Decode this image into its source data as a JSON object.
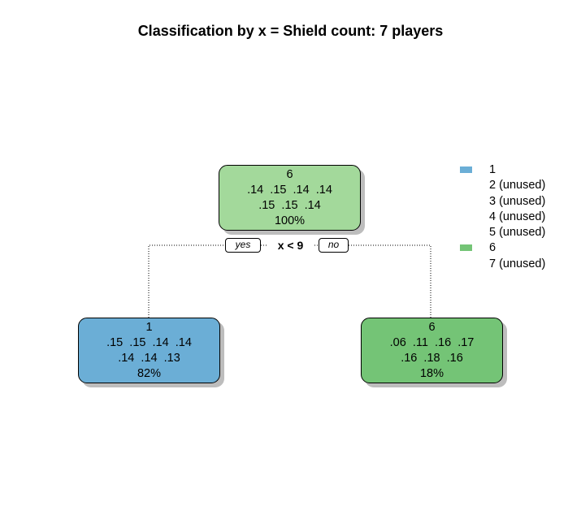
{
  "title": "Classification by x = Shield count: 7 players",
  "split": {
    "label": "x < 9",
    "yes": "yes",
    "no": "no"
  },
  "nodes": {
    "root": {
      "class_label": "6",
      "probs_line1": ".14  .15  .14  .14",
      "probs_line2": ".15  .15  .14",
      "percent": "100%",
      "color": "#a3d99b"
    },
    "left": {
      "class_label": "1",
      "probs_line1": ".15  .15  .14  .14",
      "probs_line2": ".14  .14  .13",
      "percent": "82%",
      "color": "#6baed6"
    },
    "right": {
      "class_label": "6",
      "probs_line1": ".06  .11  .16  .17",
      "probs_line2": ".16  .18  .16",
      "percent": "18%",
      "color": "#74c476"
    }
  },
  "legend": [
    {
      "label": "1",
      "color": "#6baed6"
    },
    {
      "label": "2 (unused)",
      "color": ""
    },
    {
      "label": "3 (unused)",
      "color": ""
    },
    {
      "label": "4 (unused)",
      "color": ""
    },
    {
      "label": "5 (unused)",
      "color": ""
    },
    {
      "label": "6",
      "color": "#74c476"
    },
    {
      "label": "7 (unused)",
      "color": ""
    }
  ]
}
